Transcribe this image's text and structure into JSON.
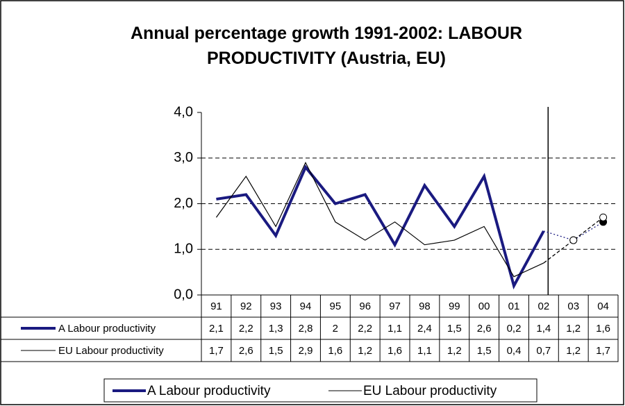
{
  "chart_data": {
    "type": "line",
    "title": "Annual percentage growth 1991-2002: LABOUR PRODUCTIVITY (Austria, EU)",
    "categories": [
      "91",
      "92",
      "93",
      "94",
      "95",
      "96",
      "97",
      "98",
      "99",
      "00",
      "01",
      "02",
      "03",
      "04"
    ],
    "series": [
      {
        "name": "A Labour productivity",
        "color": "#1a1a80",
        "values": [
          2.1,
          2.2,
          1.3,
          2.8,
          2,
          2.2,
          1.1,
          2.4,
          1.5,
          2.6,
          0.2,
          1.4,
          1.2,
          1.6
        ],
        "value_labels": [
          "2,1",
          "2,2",
          "1,3",
          "2,8",
          "2",
          "2,2",
          "1,1",
          "2,4",
          "1,5",
          "2,6",
          "0,2",
          "1,4",
          "1,2",
          "1,6"
        ]
      },
      {
        "name": "EU Labour productivity",
        "color": "#000000",
        "values": [
          1.7,
          2.6,
          1.5,
          2.9,
          1.6,
          1.2,
          1.6,
          1.1,
          1.2,
          1.5,
          0.4,
          0.7,
          1.2,
          1.7
        ],
        "value_labels": [
          "1,7",
          "2,6",
          "1,5",
          "2,9",
          "1,6",
          "1,2",
          "1,6",
          "1,1",
          "1,2",
          "1,5",
          "0,4",
          "0,7",
          "1,2",
          "1,7"
        ]
      }
    ],
    "ylim": [
      0,
      4
    ],
    "yticks": [
      {
        "value": 0,
        "label": "0,0"
      },
      {
        "value": 1,
        "label": "1,0"
      },
      {
        "value": 2,
        "label": "2,0"
      },
      {
        "value": 3,
        "label": "3,0"
      },
      {
        "value": 4,
        "label": "4,0"
      }
    ],
    "grid": true,
    "forecast_points": 2
  }
}
